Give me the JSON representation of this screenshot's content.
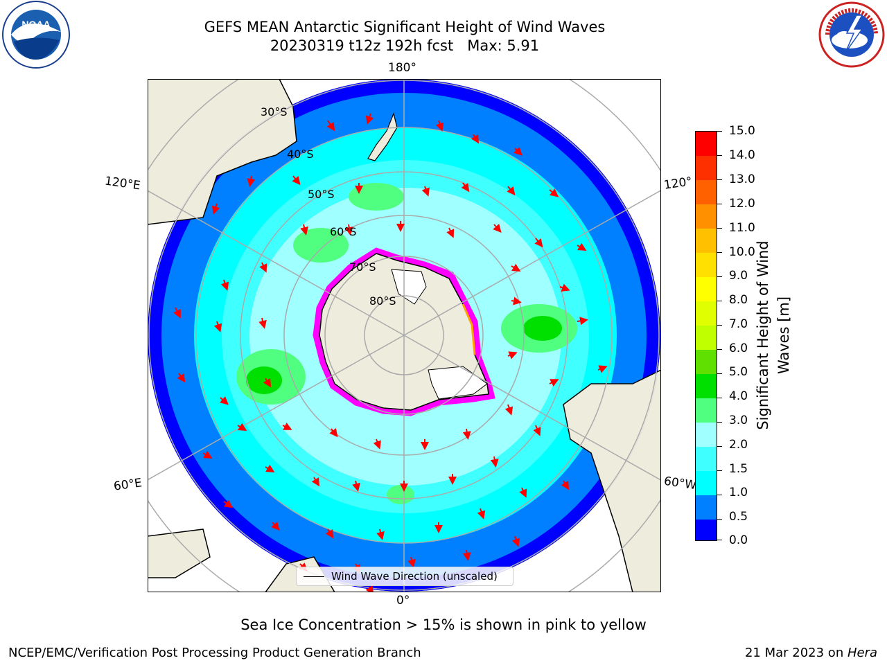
{
  "header": {
    "title": "GEFS MEAN Antarctic Significant Height of Wind Waves",
    "subtitle": "20230319 t12z 192h fcst   Max: 5.91"
  },
  "logos": {
    "left": {
      "icon": "noaa-logo",
      "text": "NOAA",
      "ring_text": "NATIONAL OCEANIC AND ATMOSPHERIC ADMINISTRATION · U.S. DEPARTMENT OF COMMERCE"
    },
    "right": {
      "icon": "national-weather-service-logo",
      "ring_text": "NATIONAL WEATHER SERVICE"
    }
  },
  "map": {
    "projection": "south-polar-stereographic",
    "longitude_labels": {
      "top": "180°",
      "bottom": "0°",
      "upper_left": "120°E",
      "lower_left": "60°E",
      "upper_right": "120°",
      "lower_right": "60°W"
    },
    "latitude_labels": [
      "30°S",
      "40°S",
      "50°S",
      "60°S",
      "70°S",
      "80°S"
    ],
    "legend_label": "Wind Wave Direction (unscaled)",
    "arrow_color": "#ff0000",
    "land_color": "#eeecdd",
    "sea_ice_colors": [
      "#ff00ff",
      "#ffa500",
      "#ffff00"
    ]
  },
  "colorbar": {
    "label_line1": "Significant Height of Wind",
    "label_line2": "Waves [m]",
    "ticks": [
      "15.0",
      "14.0",
      "13.0",
      "12.0",
      "11.0",
      "10.0",
      "9.0",
      "8.0",
      "7.0",
      "6.0",
      "5.0",
      "4.0",
      "3.0",
      "2.0",
      "1.5",
      "1.0",
      "0.5",
      "0.0"
    ],
    "colors": [
      "#0000ff",
      "#0080ff",
      "#00ffff",
      "#40ffff",
      "#a0ffff",
      "#50ff80",
      "#00e000",
      "#60e000",
      "#c0ff00",
      "#e0ff00",
      "#ffff00",
      "#ffe000",
      "#ffc000",
      "#ff9000",
      "#ff6000",
      "#ff3000",
      "#ff0000"
    ]
  },
  "note": "Sea Ice Concentration > 15% is shown in pink to yellow",
  "footer": {
    "left": "NCEP/EMC/Verification Post Processing Product Generation Branch",
    "right_prefix": "21 Mar 2023 on ",
    "right_italic": "Hera"
  }
}
